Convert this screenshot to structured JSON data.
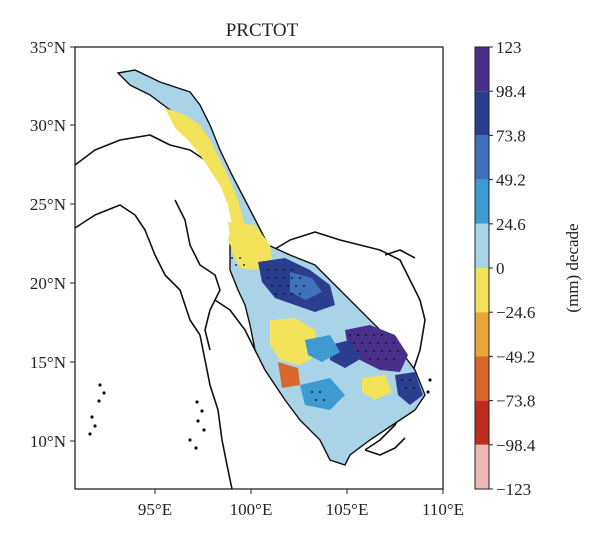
{
  "title": "PRCTOT",
  "colorbar": {
    "label": "(mm) decade",
    "ticks": [
      "123",
      "98.4",
      "73.8",
      "49.2",
      "24.6",
      "0",
      "−24.6",
      "−49.2",
      "−73.8",
      "−98.4",
      "−123"
    ],
    "colors": [
      "#4a2f8a",
      "#2a3d8f",
      "#3f72b8",
      "#3d9bd2",
      "#a9d3e6",
      "#f2e35a",
      "#e8a53a",
      "#d9672a",
      "#c02a20",
      "#edb8b8"
    ]
  },
  "axes": {
    "x_ticks": [
      "95°E",
      "100°E",
      "105°E",
      "110°E"
    ],
    "y_ticks": [
      "35°N",
      "30°N",
      "25°N",
      "20°N",
      "15°N",
      "10°N"
    ]
  }
}
